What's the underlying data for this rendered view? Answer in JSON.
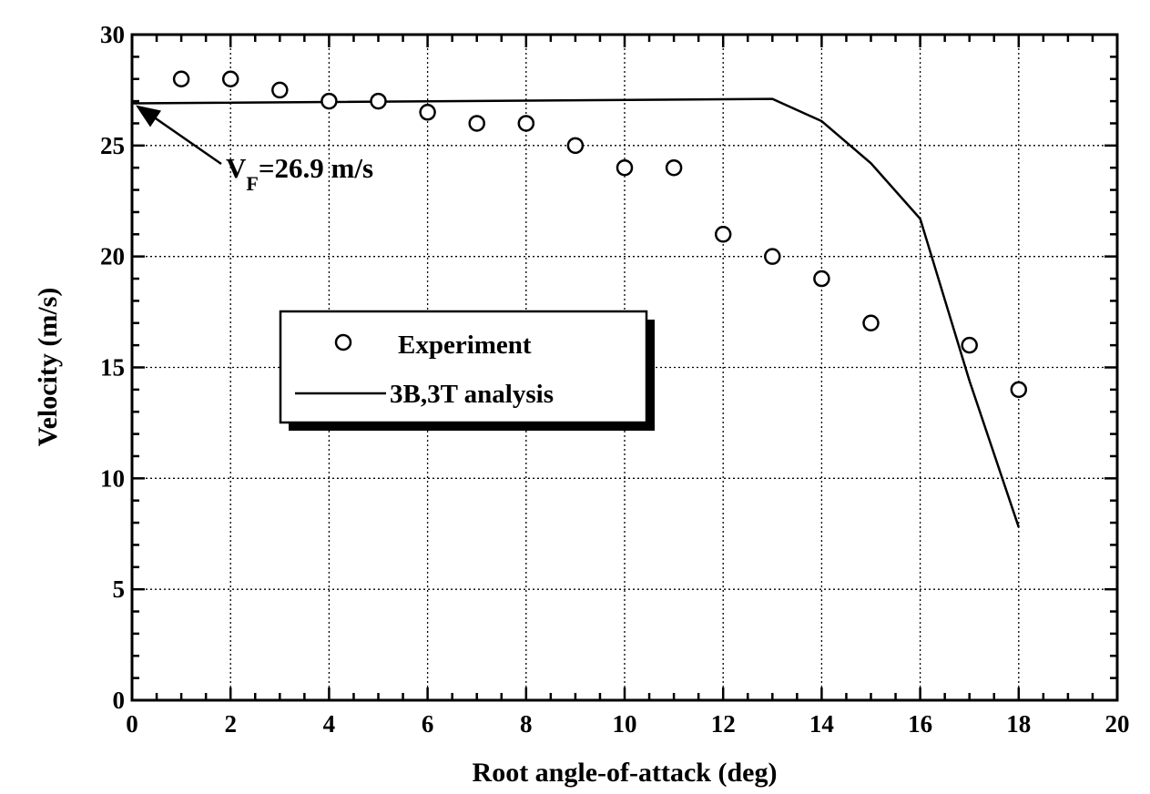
{
  "chart_data": {
    "type": "scatter",
    "xlabel": "Root  angle-of-attack  (deg)",
    "ylabel": "Velocity  (m/s)",
    "xlim": [
      0,
      20
    ],
    "ylim": [
      0,
      30
    ],
    "x_ticks": [
      0,
      2,
      4,
      6,
      8,
      10,
      12,
      14,
      16,
      18,
      20
    ],
    "y_ticks": [
      0,
      5,
      10,
      15,
      20,
      25,
      30
    ],
    "x_minor_step": 0.5,
    "y_minor_step": 1,
    "grid": true,
    "legend_position": "center-left",
    "series": [
      {
        "name": "Experiment",
        "kind": "marker",
        "x": [
          1,
          2,
          3,
          4,
          5,
          6,
          7,
          8,
          9,
          10,
          11,
          12,
          13,
          14,
          15,
          17,
          18
        ],
        "y": [
          28,
          28,
          27.5,
          27,
          27,
          26.5,
          26,
          26,
          25,
          24,
          24,
          21,
          20,
          19,
          17,
          16,
          14
        ]
      },
      {
        "name": "3B,3T  analysis",
        "kind": "line",
        "x": [
          0,
          13,
          14,
          15,
          16,
          17,
          18
        ],
        "y": [
          26.9,
          27.1,
          26.1,
          24.2,
          21.7,
          14.4,
          7.8
        ]
      }
    ],
    "annotation": {
      "text_main": "V",
      "text_sub": "F",
      "text_rest": "=26.9  m/s",
      "points_to": {
        "x": 0,
        "y": 26.9
      }
    }
  },
  "colors": {
    "foreground": "#000000",
    "background": "#ffffff"
  }
}
